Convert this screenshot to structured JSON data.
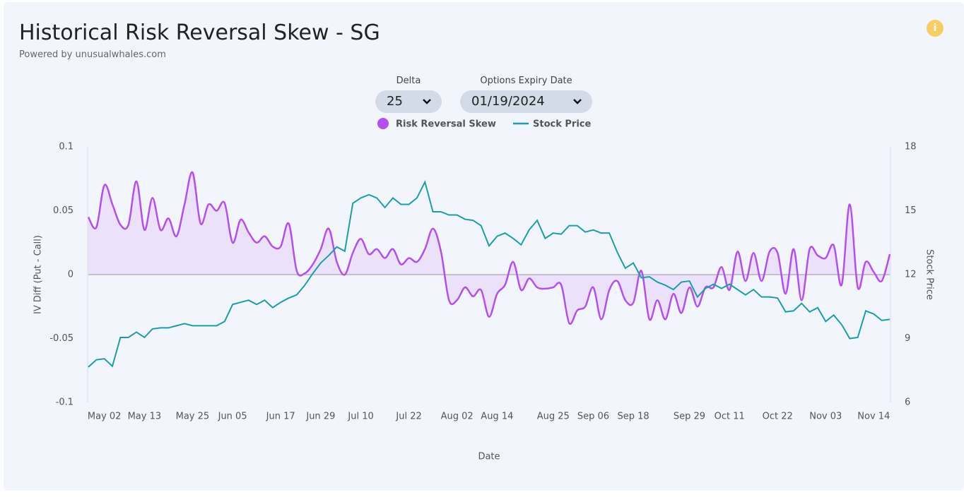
{
  "header": {
    "title": "Historical Risk Reversal Skew - SG",
    "subtitle": "Powered by unusualwhales.com"
  },
  "controls": {
    "delta": {
      "label": "Delta",
      "value": "25"
    },
    "expiry": {
      "label": "Options Expiry Date",
      "value": "01/19/2024"
    }
  },
  "chart_data": {
    "type": "line",
    "xlabel": "Date",
    "ylabel": "IV Diff (Put - Call)",
    "y2label": "Stock Price",
    "categories": [
      null,
      null,
      "May 02",
      null,
      null,
      null,
      null,
      "May 13",
      null,
      null,
      null,
      null,
      null,
      "May 25",
      null,
      null,
      null,
      null,
      "Jun 05",
      null,
      null,
      null,
      null,
      null,
      "Jun 17",
      null,
      null,
      null,
      null,
      "Jun 29",
      null,
      null,
      null,
      null,
      "Jul 10",
      null,
      null,
      null,
      null,
      null,
      "Jul 22",
      null,
      null,
      null,
      null,
      null,
      "Aug 02",
      null,
      null,
      null,
      null,
      "Aug 14",
      null,
      null,
      null,
      null,
      null,
      null,
      "Aug 25",
      null,
      null,
      null,
      null,
      "Sep 06",
      null,
      null,
      null,
      null,
      "Sep 18",
      null,
      null,
      null,
      null,
      null,
      null,
      "Sep 29",
      null,
      null,
      null,
      null,
      "Oct 11",
      null,
      null,
      null,
      null,
      null,
      "Oct 22",
      null,
      null,
      null,
      null,
      null,
      "Nov 03",
      null,
      null,
      null,
      null,
      null,
      "Nov 14",
      null,
      null
    ],
    "series": [
      {
        "name": "Risk Reversal Skew",
        "color": "#b44ff0",
        "values": [
          0.045,
          0.037,
          0.07,
          0.055,
          0.039,
          0.039,
          0.073,
          0.035,
          0.06,
          0.035,
          0.044,
          0.03,
          0.055,
          0.08,
          0.04,
          0.055,
          0.05,
          0.056,
          0.025,
          0.043,
          0.033,
          0.025,
          0.03,
          0.022,
          0.022,
          0.04,
          0.003,
          0.001,
          0.008,
          0.02,
          0.036,
          0.01,
          0.0,
          0.017,
          0.028,
          0.016,
          0.02,
          0.013,
          0.02,
          0.008,
          0.013,
          0.01,
          0.02,
          0.036,
          0.018,
          -0.02,
          -0.02,
          -0.01,
          -0.017,
          -0.012,
          -0.033,
          -0.015,
          -0.008,
          0.01,
          -0.012,
          -0.003,
          -0.01,
          -0.011,
          -0.01,
          -0.008,
          -0.038,
          -0.028,
          -0.025,
          -0.01,
          -0.035,
          -0.012,
          -0.005,
          -0.02,
          -0.022,
          0.003,
          -0.035,
          -0.02,
          -0.035,
          -0.015,
          -0.03,
          -0.01,
          -0.025,
          -0.01,
          -0.01,
          0.006,
          -0.012,
          0.018,
          -0.005,
          0.017,
          -0.005,
          0.018,
          0.017,
          -0.015,
          0.02,
          -0.02,
          0.02,
          0.015,
          0.013,
          0.023,
          -0.008,
          0.055,
          -0.01,
          0.01,
          0.002,
          -0.005,
          0.016
        ]
      },
      {
        "name": "Stock Price",
        "color": "#1a9fa8",
        "axis": "y2",
        "values": [
          7.66,
          8.0,
          8.05,
          7.7,
          9.05,
          9.05,
          9.3,
          9.05,
          9.45,
          9.5,
          9.5,
          9.6,
          9.7,
          9.6,
          9.6,
          9.6,
          9.6,
          9.8,
          10.6,
          10.7,
          10.8,
          10.6,
          10.8,
          10.45,
          10.7,
          10.9,
          11.05,
          11.5,
          12.05,
          12.55,
          12.9,
          13.3,
          13.1,
          15.35,
          15.6,
          15.75,
          15.6,
          15.15,
          15.6,
          15.3,
          15.3,
          15.6,
          16.35,
          14.95,
          14.95,
          14.8,
          14.8,
          14.6,
          14.55,
          14.3,
          13.35,
          13.8,
          13.95,
          13.7,
          13.4,
          14.1,
          14.55,
          13.7,
          13.95,
          13.9,
          14.3,
          14.3,
          14.0,
          14.1,
          13.95,
          13.95,
          13.05,
          12.3,
          12.55,
          11.85,
          11.9,
          11.65,
          11.5,
          11.3,
          11.65,
          11.7,
          10.95,
          11.35,
          11.55,
          11.35,
          11.55,
          11.3,
          11.05,
          11.3,
          10.95,
          10.95,
          10.9,
          10.25,
          10.3,
          10.65,
          10.25,
          10.45,
          9.8,
          10.1,
          9.65,
          9.0,
          9.05,
          10.3,
          10.15,
          9.85,
          9.9
        ]
      }
    ],
    "ylim": [
      -0.1,
      0.1
    ],
    "yticks": [
      -0.1,
      -0.05,
      0,
      0.05,
      0.1
    ],
    "y2lim": [
      6,
      18
    ],
    "y2ticks": [
      6,
      9,
      12,
      15,
      18
    ]
  }
}
